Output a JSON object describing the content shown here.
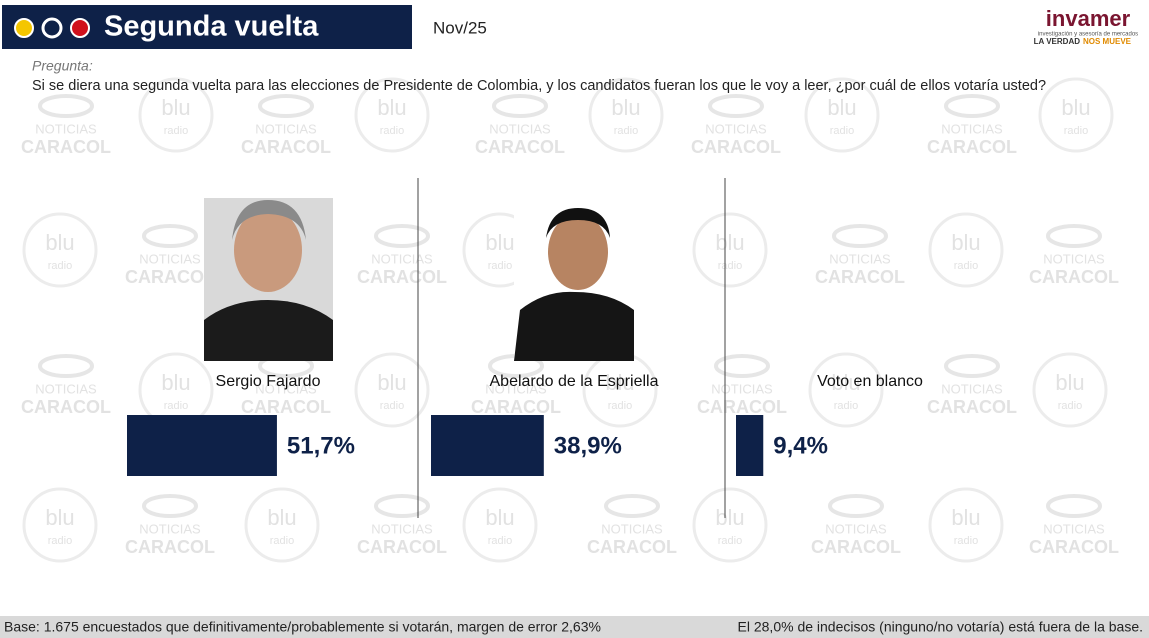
{
  "header": {
    "title": "Segunda vuelta",
    "date": "Nov/25"
  },
  "logo": {
    "name": "invamer",
    "tagline": "investigación y asesoría de mercados",
    "slogan_1": "LA VERDAD",
    "slogan_2": "NOS MUEVE"
  },
  "question": {
    "label": "Pregunta:",
    "text": "Si se diera una segunda vuelta para las elecciones de Presidente de Colombia, y los candidatos fueran los que le voy a leer, ¿por cuál de ellos votaría usted?"
  },
  "watermark": {
    "brand_1": "NOTICIAS",
    "brand_2": "CARACOL",
    "radio_1": "blu",
    "radio_2": "radio"
  },
  "chart_data": {
    "type": "bar",
    "categories": [
      "Sergio Fajardo",
      "Abelardo de la Espriella",
      "Voto en blanco"
    ],
    "values": [
      51.7,
      38.9,
      9.4
    ],
    "value_labels": [
      "51,7%",
      "38,9%",
      "9,4%"
    ],
    "color": "#0e2148"
  },
  "footer": {
    "left": "Base: 1.675 encuestados que definitivamente/probablemente si votarán, margen de error 2,63%",
    "right": "El 28,0% de indecisos (ninguno/no votaría) está fuera de la base."
  }
}
